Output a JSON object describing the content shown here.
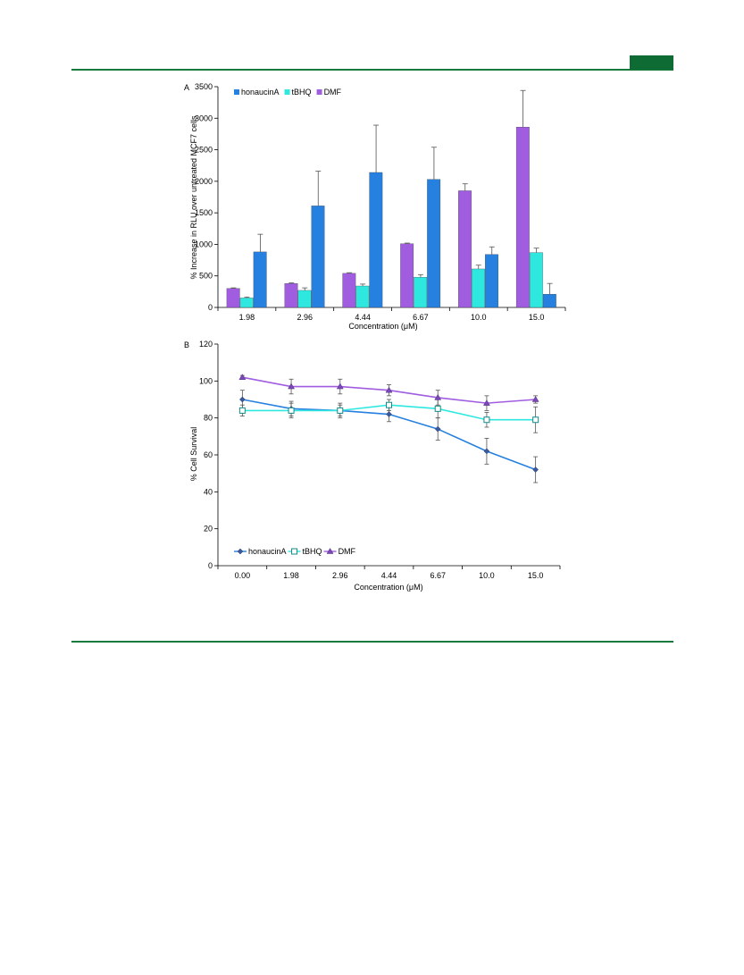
{
  "colors": {
    "rule": "#1a7a3e",
    "tab": "#0e6b34",
    "honaucinA": "#2680e0",
    "tBHQ": "#2ee8e0",
    "DMF": "#a05de0",
    "error_bar": "#555555"
  },
  "chart_data": [
    {
      "type": "bar",
      "panel_label": "A",
      "categories": [
        "1.98",
        "2.96",
        "4.44",
        "6.67",
        "10.0",
        "15.0"
      ],
      "series": [
        {
          "name": "honaucinA",
          "values": [
            880,
            1610,
            2140,
            2030,
            840,
            210
          ],
          "errors": [
            280,
            550,
            750,
            510,
            120,
            170
          ]
        },
        {
          "name": "tBHQ",
          "values": [
            150,
            270,
            340,
            480,
            610,
            870
          ],
          "errors": [
            15,
            40,
            30,
            40,
            60,
            70
          ]
        },
        {
          "name": "DMF",
          "values": [
            300,
            380,
            540,
            1010,
            1850,
            2860
          ],
          "errors": [
            10,
            10,
            10,
            10,
            110,
            580
          ]
        }
      ],
      "bar_order": [
        "DMF",
        "tBHQ",
        "honaucinA"
      ],
      "xlabel": "Concentration (μM)",
      "ylabel": "% Increase in RLU over untreated MCF7 cells",
      "ylim": [
        0,
        3500
      ],
      "yticks": [
        0,
        500,
        1000,
        1500,
        2000,
        2500,
        3000,
        3500
      ],
      "grid": false,
      "legend_position": "top-left"
    },
    {
      "type": "line",
      "panel_label": "B",
      "categories": [
        "0.00",
        "1.98",
        "2.96",
        "4.44",
        "6.67",
        "10.0",
        "15.0"
      ],
      "series": [
        {
          "name": "honaucinA",
          "marker": "diamond",
          "values": [
            90,
            85,
            84,
            82,
            74,
            62,
            52
          ],
          "errors": [
            5,
            4,
            4,
            4,
            6,
            7,
            7
          ]
        },
        {
          "name": "tBHQ",
          "marker": "square",
          "values": [
            84,
            84,
            84,
            87,
            85,
            79,
            79
          ],
          "errors": [
            3,
            4,
            3,
            3,
            5,
            4,
            7
          ]
        },
        {
          "name": "DMF",
          "marker": "triangle",
          "values": [
            102,
            97,
            97,
            95,
            91,
            88,
            90
          ],
          "errors": [
            1,
            4,
            4,
            3,
            4,
            4,
            2
          ]
        }
      ],
      "xlabel": "Concentration (μM)",
      "ylabel": "% Cell Survival",
      "ylim": [
        0,
        120
      ],
      "yticks": [
        0,
        20,
        40,
        60,
        80,
        100,
        120
      ],
      "grid": false,
      "legend_position": "bottom-left"
    }
  ]
}
